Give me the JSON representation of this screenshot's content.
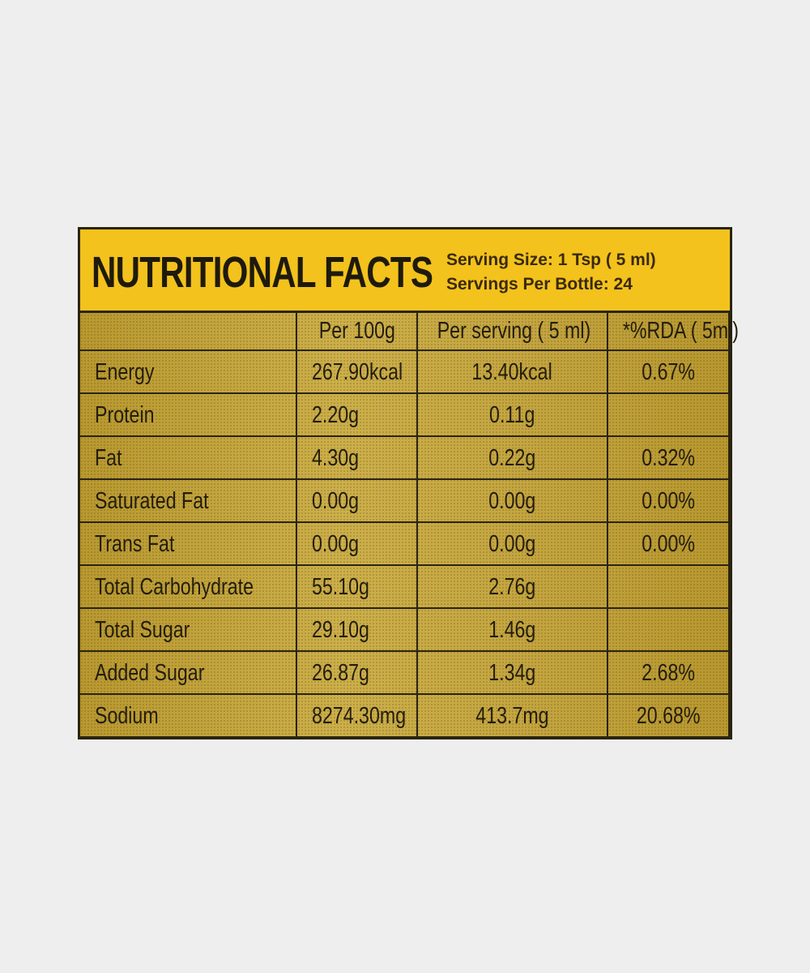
{
  "header": {
    "title": "NUTRITIONAL FACTS",
    "serving_size": "Serving Size: 1 Tsp ( 5 ml)",
    "servings_per_bottle": "Servings Per Bottle: 24"
  },
  "table": {
    "columns": [
      "Per 100g",
      "Per serving ( 5 ml)",
      "*%RDA ( 5ml)"
    ],
    "rows": [
      [
        "Energy",
        "267.90kcal",
        "13.40kcal",
        "0.67%"
      ],
      [
        "Protein",
        "2.20g",
        "0.11g",
        null
      ],
      [
        "Fat",
        "4.30g",
        "0.22g",
        "0.32%"
      ],
      [
        "Saturated Fat",
        "0.00g",
        "0.00g",
        "0.00%"
      ],
      [
        "Trans Fat",
        "0.00g",
        "0.00g",
        "0.00%"
      ],
      [
        "Total Carbohydrate",
        "55.10g",
        "2.76g",
        null
      ],
      [
        "Total Sugar",
        "29.10g",
        "1.46g",
        null
      ],
      [
        "Added Sugar",
        "26.87g",
        "1.34g",
        "2.68%"
      ],
      [
        "Sodium",
        "8274.30mg",
        "413.7mg",
        "20.68%"
      ]
    ]
  }
}
